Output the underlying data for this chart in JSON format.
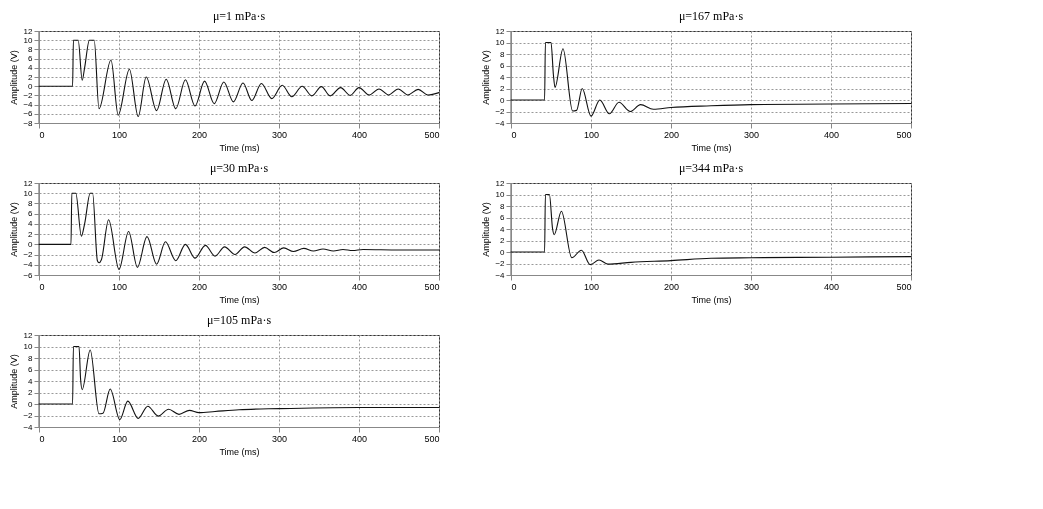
{
  "chart_data": [
    {
      "type": "line",
      "title": "μ=1 mPa·s",
      "xlabel": "Time (ms)",
      "ylabel": "Amplitude (V)",
      "xlim": [
        0,
        500
      ],
      "xticks": [
        0,
        100,
        200,
        300,
        400,
        500
      ],
      "ylim": [
        -8,
        12
      ],
      "yticks": [
        -8,
        -6,
        -4,
        -2,
        0,
        2,
        4,
        6,
        8,
        10,
        12
      ],
      "grid": true,
      "series": [
        {
          "color": "#111111",
          "x": [
            0,
            42,
            43,
            49,
            54,
            57,
            63,
            69,
            75,
            90,
            99,
            113,
            124,
            134,
            147,
            159,
            171,
            183,
            195,
            207,
            219,
            231,
            243,
            255,
            266,
            278,
            291,
            304,
            316,
            329,
            341,
            353,
            364,
            377,
            389,
            400,
            413,
            425,
            437,
            449,
            461,
            474,
            486,
            500
          ],
          "values": [
            0,
            0,
            10,
            10,
            1.3,
            4,
            10,
            10,
            -4.9,
            5.7,
            -6.3,
            3.7,
            -6.6,
            2,
            -5.3,
            1.5,
            -4.9,
            1.4,
            -4.3,
            1.1,
            -3.8,
            0.9,
            -3.4,
            0.7,
            -3.1,
            0.6,
            -2.7,
            0.2,
            -2.3,
            0,
            -2.1,
            -0.1,
            -2.1,
            -0.3,
            -2,
            -0.3,
            -1.9,
            -0.6,
            -1.9,
            -0.6,
            -1.9,
            -0.7,
            -1.9,
            -1.4
          ]
        }
      ]
    },
    {
      "type": "line",
      "title": "μ=167 mPa·s",
      "xlabel": "Time (ms)",
      "ylabel": "Amplitude (V)",
      "xlim": [
        0,
        500
      ],
      "xticks": [
        0,
        100,
        200,
        300,
        400,
        500
      ],
      "ylim": [
        -4,
        12
      ],
      "yticks": [
        -4,
        -2,
        0,
        2,
        4,
        6,
        8,
        10,
        12
      ],
      "grid": true,
      "series": [
        {
          "color": "#111111",
          "x": [
            0,
            42,
            43,
            50,
            53,
            55,
            65,
            77,
            82,
            89,
            100,
            111,
            123,
            135,
            149,
            162,
            178,
            200,
            250,
            300,
            400,
            500
          ],
          "values": [
            0,
            0,
            10,
            10,
            4.4,
            2.2,
            8.9,
            -1.9,
            -1.8,
            2,
            -2.8,
            0,
            -2.4,
            -0.4,
            -2,
            -0.8,
            -1.6,
            -1.3,
            -1,
            -0.8,
            -0.7,
            -0.6
          ]
        }
      ]
    },
    {
      "type": "line",
      "title": "μ=30 mPa·s",
      "xlabel": "Time (ms)",
      "ylabel": "Amplitude (V)",
      "xlim": [
        0,
        500
      ],
      "xticks": [
        0,
        100,
        200,
        300,
        400,
        500
      ],
      "ylim": [
        -6,
        12
      ],
      "yticks": [
        -6,
        -4,
        -2,
        0,
        2,
        4,
        6,
        8,
        10,
        12
      ],
      "grid": true,
      "series": [
        {
          "color": "#111111",
          "x": [
            0,
            40,
            41,
            46,
            53,
            57,
            64,
            67,
            73,
            75,
            78,
            87,
            100,
            112,
            123,
            135,
            147,
            158,
            171,
            183,
            195,
            208,
            220,
            232,
            245,
            257,
            270,
            282,
            294,
            306,
            318,
            331,
            343,
            355,
            368,
            380,
            392,
            405,
            450,
            500
          ],
          "values": [
            0,
            0,
            10,
            10,
            1.6,
            4,
            10,
            10,
            -3.2,
            -3.6,
            -3,
            4.8,
            -4.9,
            2.5,
            -4.5,
            1.5,
            -3.9,
            0.5,
            -3.2,
            0,
            -2.7,
            -0.2,
            -2.3,
            -0.5,
            -2,
            -0.5,
            -1.7,
            -0.6,
            -1.6,
            -0.7,
            -1.4,
            -0.8,
            -1.3,
            -0.9,
            -1.3,
            -1,
            -1.2,
            -1,
            -1.1,
            -1.1
          ]
        }
      ]
    },
    {
      "type": "line",
      "title": "μ=344 mPa·s",
      "xlabel": "Time (ms)",
      "ylabel": "Amplitude (V)",
      "xlim": [
        0,
        500
      ],
      "xticks": [
        0,
        100,
        200,
        300,
        400,
        500
      ],
      "ylim": [
        -4,
        12
      ],
      "yticks": [
        -4,
        -2,
        0,
        2,
        4,
        6,
        8,
        10,
        12
      ],
      "grid": true,
      "series": [
        {
          "color": "#111111",
          "x": [
            0,
            42,
            43,
            48,
            52,
            54,
            63,
            76,
            88,
            99,
            110,
            121,
            150,
            200,
            250,
            300,
            400,
            500
          ],
          "values": [
            0,
            0,
            10,
            10,
            4,
            3,
            7.1,
            -1,
            0.3,
            -2.2,
            -1.4,
            -2.1,
            -1.8,
            -1.5,
            -1.1,
            -1,
            -0.9,
            -0.8
          ]
        }
      ]
    },
    {
      "type": "line",
      "title": "μ=105 mPa·s",
      "xlabel": "Time (ms)",
      "ylabel": "Amplitude (V)",
      "xlim": [
        0,
        500
      ],
      "xticks": [
        0,
        100,
        200,
        300,
        400,
        500
      ],
      "ylim": [
        -4,
        12
      ],
      "yticks": [
        -4,
        -2,
        0,
        2,
        4,
        6,
        8,
        10,
        12
      ],
      "grid": true,
      "series": [
        {
          "color": "#111111",
          "x": [
            0,
            42,
            43,
            50,
            52,
            54,
            64,
            75,
            80,
            89,
            101,
            111,
            124,
            136,
            149,
            162,
            175,
            188,
            200,
            220,
            250,
            300,
            400,
            500
          ],
          "values": [
            0,
            0,
            10,
            10,
            4.3,
            2.5,
            9.4,
            -1.7,
            -1.6,
            2.6,
            -2.7,
            0.5,
            -2.5,
            -0.4,
            -2.1,
            -0.9,
            -1.8,
            -1.1,
            -1.5,
            -1.3,
            -1,
            -0.8,
            -0.6,
            -0.6
          ]
        }
      ]
    }
  ]
}
